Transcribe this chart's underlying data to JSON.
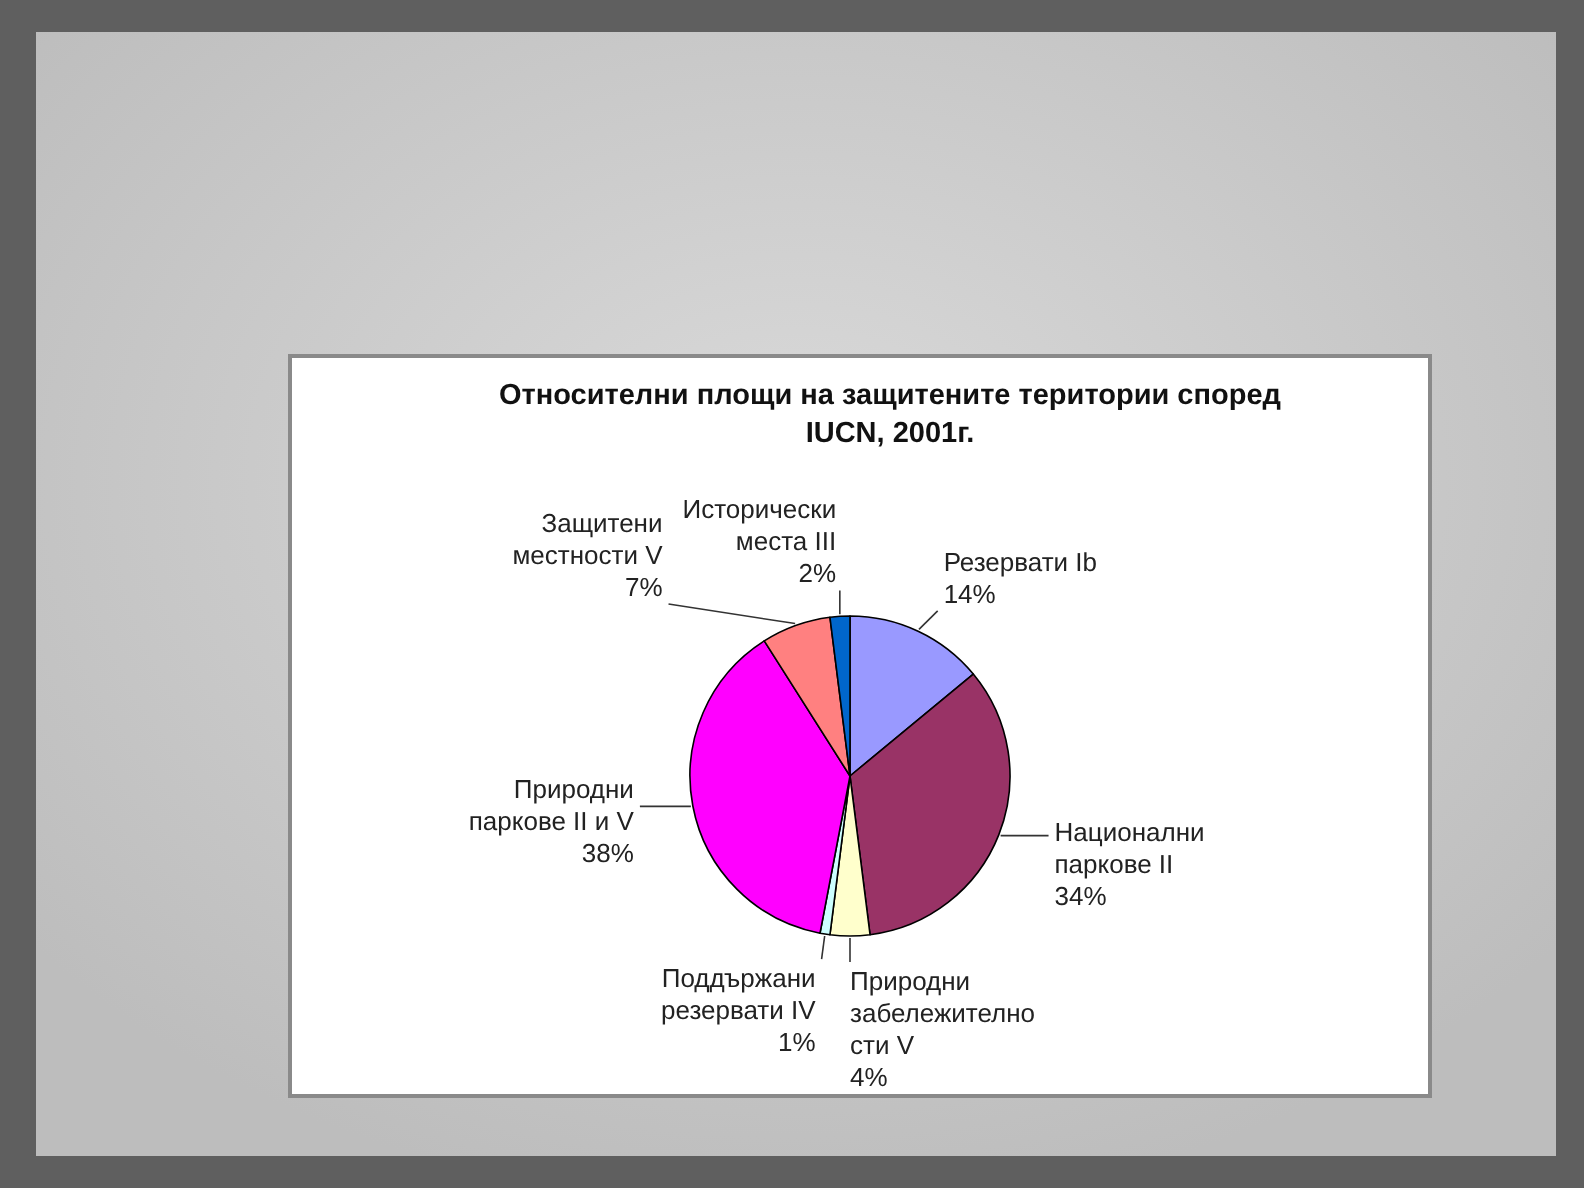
{
  "chart_data": {
    "type": "pie",
    "title": "Относителни площи на защитените територии според\nIUCN, 2001г.",
    "categories": [
      "Резервати  Ib",
      "Национални\nпаркове  II",
      "Природни\nзабележително\nсти  V",
      "Поддържани\nрезервати  IV",
      "Природни\nпаркове  II и V",
      "Защитени\nместности  V",
      "Исторически\nместа  III"
    ],
    "values": [
      14,
      34,
      4,
      1,
      38,
      7,
      2
    ],
    "colors": [
      "#9999ff",
      "#993366",
      "#ffffcc",
      "#ccffff",
      "#ff00ff",
      "#ff8080",
      "#0066cc"
    ],
    "value_labels": [
      "14%",
      "34%",
      "4%",
      "1%",
      "38%",
      "7%",
      "2%"
    ]
  }
}
